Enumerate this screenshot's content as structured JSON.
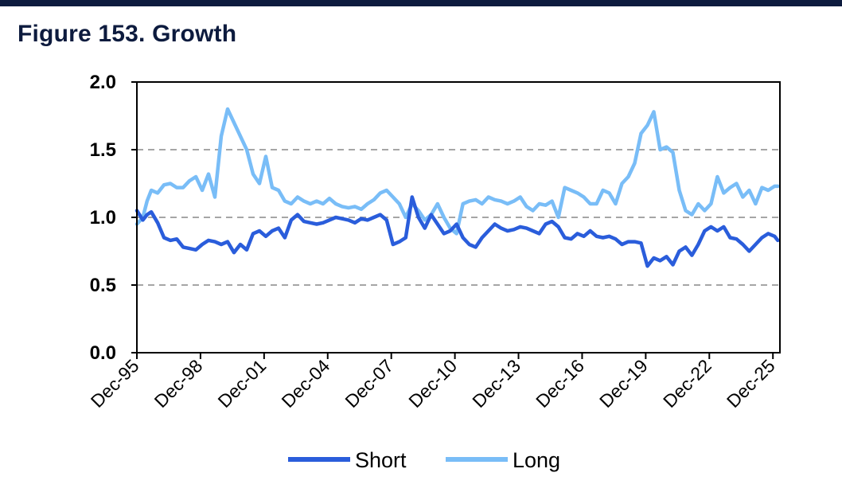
{
  "figure_title": "Figure 153. Growth",
  "colors": {
    "short": "#2a5ddb",
    "long": "#79bdf7",
    "title": "#0d1b3e"
  },
  "chart_data": {
    "type": "line",
    "title": "Figure 153. Growth",
    "xlabel": "",
    "ylabel": "",
    "ylim": [
      0,
      2
    ],
    "yticks": [
      "0.0",
      "0.5",
      "1.0",
      "1.5",
      "2.0"
    ],
    "xlim": [
      1995.92,
      2026.25
    ],
    "xticks": [
      {
        "label": "Dec-95",
        "x": 1995.92
      },
      {
        "label": "Dec-98",
        "x": 1998.92
      },
      {
        "label": "Dec-01",
        "x": 2001.92
      },
      {
        "label": "Dec-04",
        "x": 2004.92
      },
      {
        "label": "Dec-07",
        "x": 2007.92
      },
      {
        "label": "Dec-10",
        "x": 2010.92
      },
      {
        "label": "Dec-13",
        "x": 2013.92
      },
      {
        "label": "Dec-16",
        "x": 2016.92
      },
      {
        "label": "Dec-19",
        "x": 2019.92
      },
      {
        "label": "Dec-22",
        "x": 2022.92
      },
      {
        "label": "Dec-25",
        "x": 2025.92
      }
    ],
    "grid": "horizontal-dashed",
    "legend": "bottom",
    "series": [
      {
        "name": "Short",
        "x": [
          1995.92,
          1996.2,
          1996.4,
          1996.6,
          1996.9,
          1997.2,
          1997.5,
          1997.8,
          1998.1,
          1998.4,
          1998.7,
          1999.0,
          1999.3,
          1999.6,
          1999.9,
          2000.2,
          2000.5,
          2000.8,
          2001.1,
          2001.4,
          2001.7,
          2002.0,
          2002.3,
          2002.6,
          2002.9,
          2003.2,
          2003.5,
          2003.8,
          2004.1,
          2004.4,
          2004.7,
          2005.0,
          2005.3,
          2005.6,
          2005.9,
          2006.2,
          2006.5,
          2006.8,
          2007.1,
          2007.4,
          2007.7,
          2008.0,
          2008.3,
          2008.6,
          2008.9,
          2009.2,
          2009.5,
          2009.8,
          2010.1,
          2010.4,
          2010.7,
          2011.0,
          2011.3,
          2011.6,
          2011.9,
          2012.2,
          2012.5,
          2012.8,
          2013.1,
          2013.4,
          2013.7,
          2014.0,
          2014.3,
          2014.6,
          2014.9,
          2015.2,
          2015.5,
          2015.8,
          2016.1,
          2016.4,
          2016.7,
          2017.0,
          2017.3,
          2017.6,
          2017.9,
          2018.2,
          2018.5,
          2018.8,
          2019.1,
          2019.4,
          2019.7,
          2020.0,
          2020.3,
          2020.6,
          2020.9,
          2021.2,
          2021.5,
          2021.8,
          2022.1,
          2022.4,
          2022.7,
          2023.0,
          2023.3,
          2023.6,
          2023.9,
          2024.2,
          2024.5,
          2024.8,
          2025.1,
          2025.4,
          2025.7,
          2026.0,
          2026.15
        ],
        "values": [
          1.05,
          0.98,
          1.02,
          1.04,
          0.96,
          0.85,
          0.83,
          0.84,
          0.78,
          0.77,
          0.76,
          0.8,
          0.83,
          0.82,
          0.8,
          0.82,
          0.74,
          0.8,
          0.76,
          0.88,
          0.9,
          0.86,
          0.9,
          0.92,
          0.85,
          0.98,
          1.02,
          0.97,
          0.96,
          0.95,
          0.96,
          0.98,
          1.0,
          0.99,
          0.98,
          0.96,
          0.99,
          0.98,
          1.0,
          1.02,
          0.98,
          0.8,
          0.82,
          0.85,
          1.15,
          1.0,
          0.92,
          1.02,
          0.95,
          0.88,
          0.9,
          0.95,
          0.85,
          0.8,
          0.78,
          0.85,
          0.9,
          0.95,
          0.92,
          0.9,
          0.91,
          0.93,
          0.92,
          0.9,
          0.88,
          0.95,
          0.97,
          0.93,
          0.85,
          0.84,
          0.88,
          0.86,
          0.9,
          0.86,
          0.85,
          0.86,
          0.84,
          0.8,
          0.82,
          0.82,
          0.81,
          0.64,
          0.7,
          0.68,
          0.71,
          0.65,
          0.75,
          0.78,
          0.72,
          0.8,
          0.9,
          0.93,
          0.9,
          0.93,
          0.85,
          0.84,
          0.8,
          0.75,
          0.8,
          0.85,
          0.88,
          0.86,
          0.83
        ]
      },
      {
        "name": "Long",
        "x": [
          1995.92,
          1996.2,
          1996.4,
          1996.6,
          1996.9,
          1997.2,
          1997.5,
          1997.8,
          1998.1,
          1998.4,
          1998.7,
          1999.0,
          1999.3,
          1999.6,
          1999.9,
          2000.2,
          2000.5,
          2000.8,
          2001.1,
          2001.4,
          2001.7,
          2002.0,
          2002.3,
          2002.6,
          2002.9,
          2003.2,
          2003.5,
          2003.8,
          2004.1,
          2004.4,
          2004.7,
          2005.0,
          2005.3,
          2005.6,
          2005.9,
          2006.2,
          2006.5,
          2006.8,
          2007.1,
          2007.4,
          2007.7,
          2008.0,
          2008.3,
          2008.6,
          2008.9,
          2009.2,
          2009.5,
          2009.8,
          2010.1,
          2010.4,
          2010.7,
          2011.0,
          2011.3,
          2011.6,
          2011.9,
          2012.2,
          2012.5,
          2012.8,
          2013.1,
          2013.4,
          2013.7,
          2014.0,
          2014.3,
          2014.6,
          2014.9,
          2015.2,
          2015.5,
          2015.8,
          2016.1,
          2016.4,
          2016.7,
          2017.0,
          2017.3,
          2017.6,
          2017.9,
          2018.2,
          2018.5,
          2018.8,
          2019.1,
          2019.4,
          2019.7,
          2020.0,
          2020.3,
          2020.6,
          2020.9,
          2021.2,
          2021.5,
          2021.8,
          2022.1,
          2022.4,
          2022.7,
          2023.0,
          2023.3,
          2023.6,
          2023.9,
          2024.2,
          2024.5,
          2024.8,
          2025.1,
          2025.4,
          2025.7,
          2026.0,
          2026.15
        ],
        "values": [
          0.95,
          1.0,
          1.12,
          1.2,
          1.18,
          1.24,
          1.25,
          1.22,
          1.22,
          1.27,
          1.3,
          1.2,
          1.32,
          1.15,
          1.6,
          1.8,
          1.7,
          1.6,
          1.5,
          1.32,
          1.25,
          1.45,
          1.22,
          1.2,
          1.12,
          1.1,
          1.15,
          1.12,
          1.1,
          1.12,
          1.1,
          1.14,
          1.1,
          1.08,
          1.07,
          1.08,
          1.06,
          1.1,
          1.13,
          1.18,
          1.2,
          1.15,
          1.1,
          1.0,
          1.1,
          1.05,
          0.98,
          1.02,
          1.1,
          1.0,
          0.92,
          0.88,
          1.1,
          1.12,
          1.13,
          1.1,
          1.15,
          1.13,
          1.12,
          1.1,
          1.12,
          1.15,
          1.08,
          1.05,
          1.1,
          1.09,
          1.12,
          1.0,
          1.22,
          1.2,
          1.18,
          1.15,
          1.1,
          1.1,
          1.2,
          1.18,
          1.1,
          1.25,
          1.3,
          1.4,
          1.62,
          1.68,
          1.78,
          1.5,
          1.52,
          1.48,
          1.2,
          1.05,
          1.02,
          1.1,
          1.05,
          1.1,
          1.3,
          1.18,
          1.22,
          1.25,
          1.15,
          1.2,
          1.1,
          1.22,
          1.2,
          1.23,
          1.23
        ]
      }
    ]
  }
}
